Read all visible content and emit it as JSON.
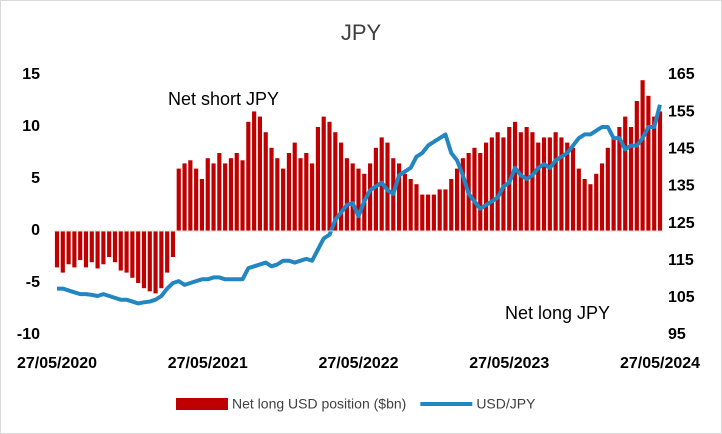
{
  "chart_data": {
    "type": "bar_line",
    "title": "JPY",
    "annotations": [
      "Net short JPY",
      "Net long JPY"
    ],
    "categories": [
      "27/05/2020",
      null,
      null,
      null,
      null,
      null,
      null,
      null,
      null,
      null,
      null,
      null,
      null,
      null,
      null,
      null,
      null,
      null,
      null,
      null,
      null,
      null,
      null,
      null,
      null,
      null,
      "27/05/2021",
      null,
      null,
      null,
      null,
      null,
      null,
      null,
      null,
      null,
      null,
      null,
      null,
      null,
      null,
      null,
      null,
      null,
      null,
      null,
      null,
      null,
      null,
      null,
      null,
      null,
      "27/05/2022",
      null,
      null,
      null,
      null,
      null,
      null,
      null,
      null,
      null,
      null,
      null,
      null,
      null,
      null,
      null,
      null,
      null,
      null,
      null,
      null,
      null,
      null,
      null,
      null,
      null,
      "27/05/2023",
      null,
      null,
      null,
      null,
      null,
      null,
      null,
      null,
      null,
      null,
      null,
      null,
      null,
      null,
      null,
      null,
      null,
      null,
      null,
      null,
      null,
      null,
      null,
      null,
      null,
      "27/05/2024"
    ],
    "series": [
      {
        "name": "Net long USD position ($bn)",
        "type": "bar",
        "color": "#c00000",
        "values": [
          -3.5,
          -4,
          -3.2,
          -3.5,
          -2.8,
          -3.5,
          -3,
          -3.6,
          -3.2,
          -2.5,
          -3,
          -3.8,
          -4,
          -4.5,
          -5,
          -5.5,
          -5.8,
          -6,
          -5.5,
          -4,
          -2.5,
          6,
          6.5,
          6.8,
          6,
          5,
          7,
          6.5,
          7.5,
          6.5,
          7,
          7.5,
          6.8,
          10.5,
          11.5,
          11,
          9.5,
          8,
          7,
          6,
          7.5,
          8.5,
          7,
          7.5,
          6.5,
          10,
          11,
          10.5,
          9.5,
          8.5,
          7,
          6.5,
          6,
          5.5,
          6.5,
          8,
          9,
          8.5,
          7,
          6.5,
          5.5,
          5,
          4.5,
          3.5,
          3.5,
          3.5,
          4,
          4,
          5,
          6,
          7,
          7.5,
          8,
          7.5,
          8.5,
          9,
          9.5,
          9,
          10,
          10.5,
          9.5,
          10,
          9.5,
          8.5,
          9,
          9,
          9.5,
          9,
          8.5,
          8,
          6,
          5,
          4.5,
          5.5,
          6.5,
          8,
          9,
          10,
          11,
          10,
          12.5,
          14.5,
          13,
          11,
          11.5
        ]
      },
      {
        "name": "USD/JPY",
        "type": "line",
        "axis": "y2",
        "color": "#2286c3",
        "values": [
          107.5,
          107.5,
          107,
          106.5,
          106,
          106,
          105.8,
          105.5,
          106,
          105.5,
          105,
          104.5,
          104.5,
          104,
          103.5,
          103.8,
          104,
          104.5,
          105.5,
          107.5,
          109,
          109.5,
          108.5,
          109,
          109.5,
          110,
          110,
          110.5,
          110.5,
          110,
          110,
          110,
          110,
          113,
          113.5,
          114,
          114.5,
          113.5,
          114,
          115,
          115,
          114.5,
          115,
          115.5,
          115,
          118,
          121,
          122,
          126,
          128,
          130,
          130.5,
          127,
          131,
          134,
          135,
          136,
          134,
          133,
          138,
          139,
          140,
          143,
          144,
          146,
          147,
          148,
          149,
          144,
          142,
          138,
          133,
          131,
          129,
          130,
          131,
          132,
          135,
          136,
          140,
          138,
          137,
          138,
          140,
          141,
          140,
          142,
          143,
          144,
          146,
          148,
          149,
          149,
          150,
          151,
          151,
          148,
          148,
          145,
          146,
          146,
          148,
          151,
          151,
          157
        ]
      }
    ],
    "ylim": [
      -10,
      15
    ],
    "yticks": [
      -10,
      -5,
      0,
      5,
      10,
      15
    ],
    "y2lim": [
      95,
      165
    ],
    "y2ticks": [
      95,
      105,
      115,
      125,
      135,
      145,
      155,
      165
    ]
  }
}
